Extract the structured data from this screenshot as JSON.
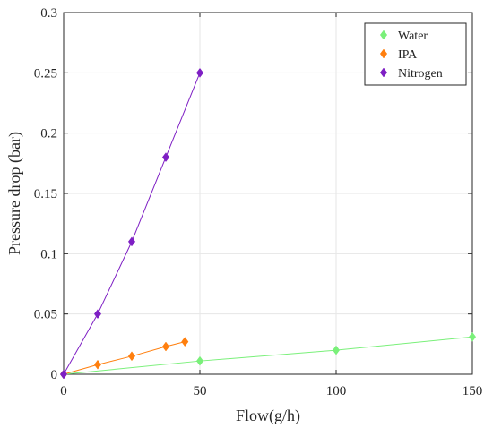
{
  "chart_data": {
    "type": "scatter",
    "title": "",
    "xlabel": "Flow(g/h)",
    "ylabel": "Pressure drop (bar)",
    "xlim": [
      0,
      150
    ],
    "ylim": [
      0,
      0.3
    ],
    "xticks": [
      0,
      50,
      100,
      150
    ],
    "xtick_labels": [
      "0",
      "50",
      "100",
      "150"
    ],
    "yticks": [
      0,
      0.05,
      0.1,
      0.15,
      0.2,
      0.25,
      0.3
    ],
    "ytick_labels": [
      "0",
      "0.05",
      "0.1",
      "0.15",
      "0.2",
      "0.25",
      "0.3"
    ],
    "grid": true,
    "legend": "top-right",
    "marker": "diamond",
    "series": [
      {
        "name": "Water",
        "color": "#7af07a",
        "x": [
          0,
          50,
          100,
          150
        ],
        "y": [
          0,
          0.011,
          0.02,
          0.031
        ]
      },
      {
        "name": "IPA",
        "color": "#ff7f0e",
        "x": [
          0,
          12.5,
          25,
          37.5,
          44.5
        ],
        "y": [
          0,
          0.008,
          0.015,
          0.023,
          0.027
        ]
      },
      {
        "name": "Nitrogen",
        "color": "#7e1fc4",
        "x": [
          0,
          12.5,
          25,
          37.5,
          50
        ],
        "y": [
          0,
          0.05,
          0.11,
          0.18,
          0.25
        ]
      }
    ]
  }
}
